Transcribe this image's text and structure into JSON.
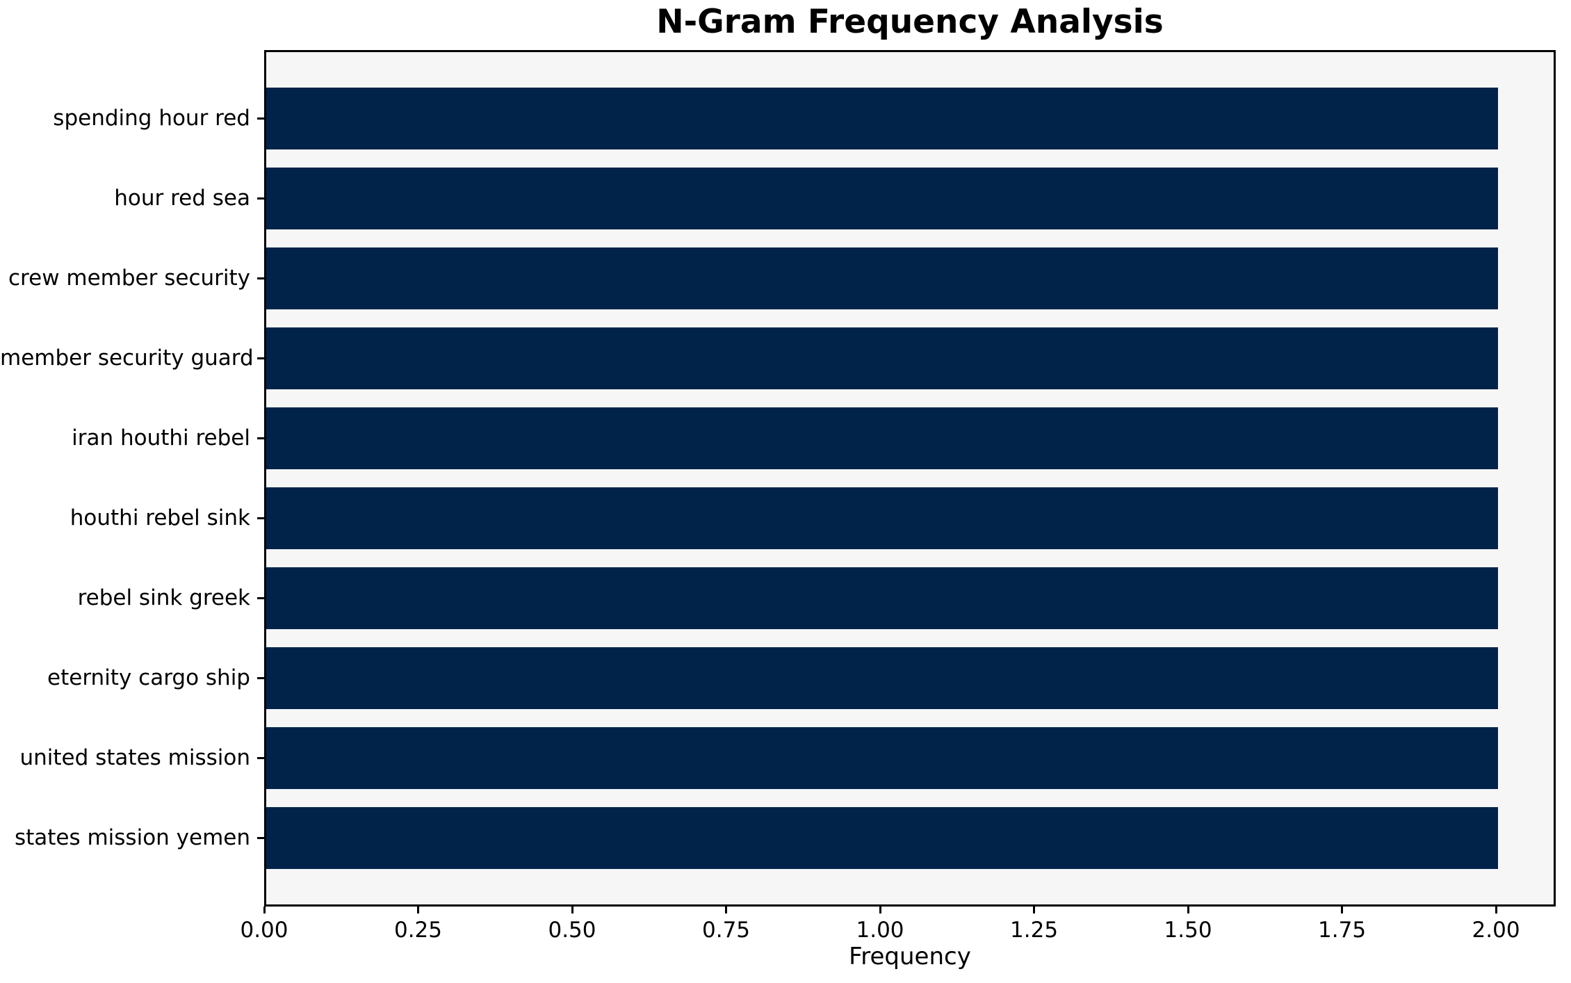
{
  "chart_data": {
    "type": "bar",
    "orientation": "horizontal",
    "title": "N-Gram Frequency Analysis",
    "xlabel": "Frequency",
    "ylabel": "",
    "categories": [
      "spending hour red",
      "hour red sea",
      "crew member security",
      "member security guard",
      "iran houthi rebel",
      "houthi rebel sink",
      "rebel sink greek",
      "eternity cargo ship",
      "united states mission",
      "states mission yemen"
    ],
    "values": [
      2,
      2,
      2,
      2,
      2,
      2,
      2,
      2,
      2,
      2
    ],
    "xlim": [
      0,
      2.097
    ],
    "xticks": [
      0.0,
      0.25,
      0.5,
      0.75,
      1.0,
      1.25,
      1.5,
      1.75,
      2.0
    ],
    "xtick_labels": [
      "0.00",
      "0.25",
      "0.50",
      "0.75",
      "1.00",
      "1.25",
      "1.50",
      "1.75",
      "2.00"
    ],
    "grid": false,
    "legend": "none",
    "colors": {
      "bar": "#022349",
      "plot_background": "#f6f6f6",
      "figure_background": "#ffffff",
      "spine": "#000000",
      "text": "#000000"
    }
  }
}
